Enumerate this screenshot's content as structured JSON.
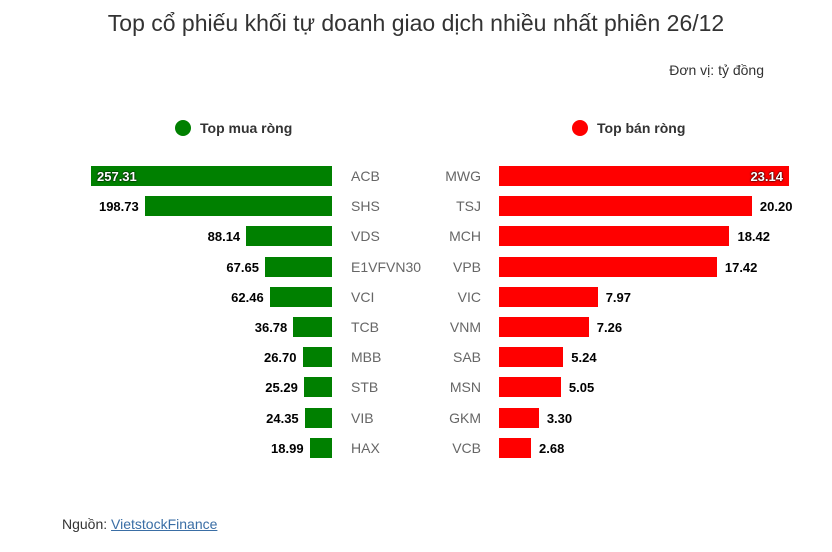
{
  "header": {
    "title": "Top cổ phiếu khối tự doanh giao dịch nhiều nhất phiên 26/12",
    "unit": "Đơn vị: tỷ đồng"
  },
  "legend": {
    "buy": {
      "label": "Top mua ròng",
      "color": "#008000"
    },
    "sell": {
      "label": "Top bán ròng",
      "color": "#ff0000"
    }
  },
  "footer": {
    "source_label": "Nguồn:",
    "source_link": "VietstockFinance"
  },
  "chart_data": [
    {
      "type": "bar",
      "orientation": "horizontal",
      "title": "Top mua ròng",
      "unit": "tỷ đồng",
      "color": "#008000",
      "categories": [
        "ACB",
        "SHS",
        "VDS",
        "E1VFVN30",
        "VCI",
        "TCB",
        "MBB",
        "STB",
        "VIB",
        "HAX"
      ],
      "values": [
        257.31,
        198.73,
        88.14,
        67.65,
        62.46,
        36.78,
        26.7,
        25.29,
        24.35,
        18.99
      ],
      "labels": [
        "257.31",
        "198.73",
        "88.14",
        "67.65",
        "62.46",
        "36.78",
        "26.70",
        "25.29",
        "24.35",
        "18.99"
      ],
      "direction": "right-to-left"
    },
    {
      "type": "bar",
      "orientation": "horizontal",
      "title": "Top bán ròng",
      "unit": "tỷ đồng",
      "color": "#ff0000",
      "categories": [
        "MWG",
        "TSJ",
        "MCH",
        "VPB",
        "VIC",
        "VNM",
        "SAB",
        "MSN",
        "GKM",
        "VCB"
      ],
      "values": [
        23.14,
        20.2,
        18.42,
        17.42,
        7.97,
        7.26,
        5.24,
        5.05,
        3.3,
        2.68
      ],
      "labels": [
        "23.14",
        "20.20",
        "18.42",
        "17.42",
        "7.97",
        "7.26",
        "5.24",
        "5.05",
        "3.30",
        "2.68"
      ],
      "direction": "left-to-right"
    }
  ]
}
